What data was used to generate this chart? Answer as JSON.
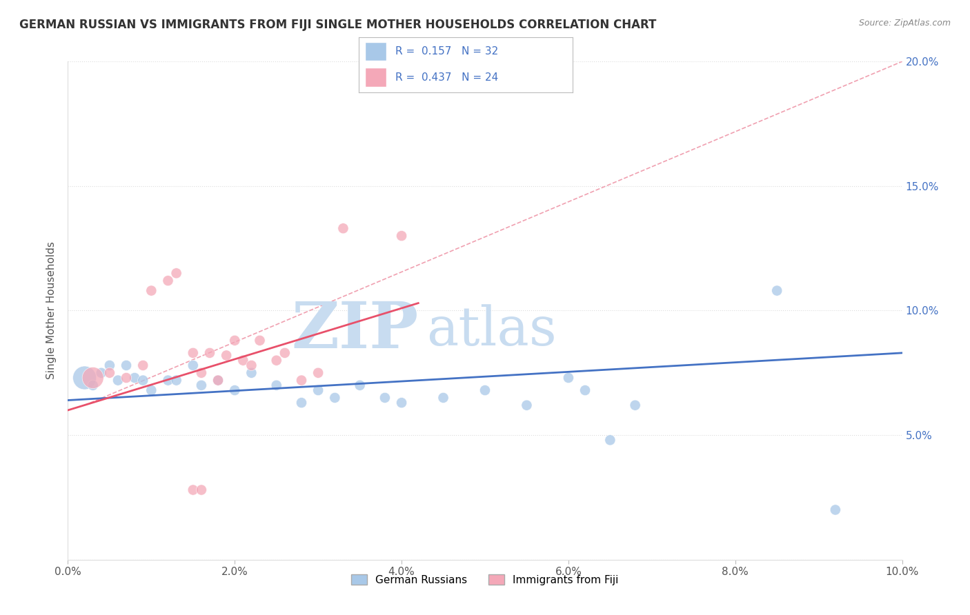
{
  "title": "GERMAN RUSSIAN VS IMMIGRANTS FROM FIJI SINGLE MOTHER HOUSEHOLDS CORRELATION CHART",
  "source": "Source: ZipAtlas.com",
  "ylabel": "Single Mother Households",
  "legend_label1": "German Russians",
  "legend_label2": "Immigrants from Fiji",
  "R1": 0.157,
  "N1": 32,
  "R2": 0.437,
  "N2": 24,
  "color1": "#A8C8E8",
  "color2": "#F4A8B8",
  "trendline1_color": "#4472C4",
  "trendline2_color": "#E8506A",
  "refline_color": "#F0A0B0",
  "xlim": [
    0.0,
    0.1
  ],
  "ylim": [
    0.0,
    0.2
  ],
  "xticks": [
    0.0,
    0.02,
    0.04,
    0.06,
    0.08,
    0.1
  ],
  "yticks": [
    0.0,
    0.05,
    0.1,
    0.15,
    0.2
  ],
  "xtick_labels": [
    "0.0%",
    "2.0%",
    "4.0%",
    "6.0%",
    "8.0%",
    "10.0%"
  ],
  "ytick_labels_right": [
    "",
    "5.0%",
    "10.0%",
    "15.0%",
    "20.0%"
  ],
  "scatter1_x": [
    0.002,
    0.003,
    0.004,
    0.005,
    0.006,
    0.007,
    0.008,
    0.009,
    0.01,
    0.012,
    0.013,
    0.015,
    0.016,
    0.018,
    0.02,
    0.022,
    0.025,
    0.028,
    0.03,
    0.032,
    0.035,
    0.038,
    0.04,
    0.045,
    0.05,
    0.055,
    0.06,
    0.062,
    0.065,
    0.068,
    0.085,
    0.092
  ],
  "scatter1_y": [
    0.073,
    0.07,
    0.075,
    0.078,
    0.072,
    0.078,
    0.073,
    0.072,
    0.068,
    0.072,
    0.072,
    0.078,
    0.07,
    0.072,
    0.068,
    0.075,
    0.07,
    0.063,
    0.068,
    0.065,
    0.07,
    0.065,
    0.063,
    0.065,
    0.068,
    0.062,
    0.073,
    0.068,
    0.048,
    0.062,
    0.108,
    0.02
  ],
  "scatter1_size": [
    600,
    120,
    120,
    120,
    120,
    120,
    120,
    120,
    120,
    120,
    120,
    120,
    120,
    120,
    120,
    120,
    120,
    120,
    120,
    120,
    120,
    120,
    120,
    120,
    120,
    120,
    120,
    120,
    120,
    120,
    120,
    120
  ],
  "scatter2_x": [
    0.003,
    0.005,
    0.007,
    0.009,
    0.01,
    0.012,
    0.013,
    0.015,
    0.016,
    0.017,
    0.018,
    0.019,
    0.02,
    0.021,
    0.022,
    0.023,
    0.025,
    0.026,
    0.028,
    0.03,
    0.033,
    0.04,
    0.015,
    0.016
  ],
  "scatter2_y": [
    0.073,
    0.075,
    0.073,
    0.078,
    0.108,
    0.112,
    0.115,
    0.083,
    0.075,
    0.083,
    0.072,
    0.082,
    0.088,
    0.08,
    0.078,
    0.088,
    0.08,
    0.083,
    0.072,
    0.075,
    0.133,
    0.13,
    0.028,
    0.028
  ],
  "scatter2_size": [
    500,
    120,
    120,
    120,
    120,
    120,
    120,
    120,
    120,
    120,
    120,
    120,
    120,
    120,
    120,
    120,
    120,
    120,
    120,
    120,
    120,
    120,
    120,
    120
  ],
  "trendline1_x": [
    0.0,
    0.1
  ],
  "trendline1_y": [
    0.064,
    0.083
  ],
  "trendline2_x": [
    0.0,
    0.042
  ],
  "trendline2_y": [
    0.06,
    0.103
  ],
  "refline_x": [
    0.002,
    0.1
  ],
  "refline_y": [
    0.062,
    0.2
  ],
  "watermark_zip": "ZIP",
  "watermark_atlas": "atlas",
  "watermark_color_zip": "#C8DCF0",
  "watermark_color_atlas": "#C8DCF0",
  "title_fontsize": 12,
  "axis_fontsize": 11,
  "tick_fontsize": 11,
  "legend_fontsize": 11
}
